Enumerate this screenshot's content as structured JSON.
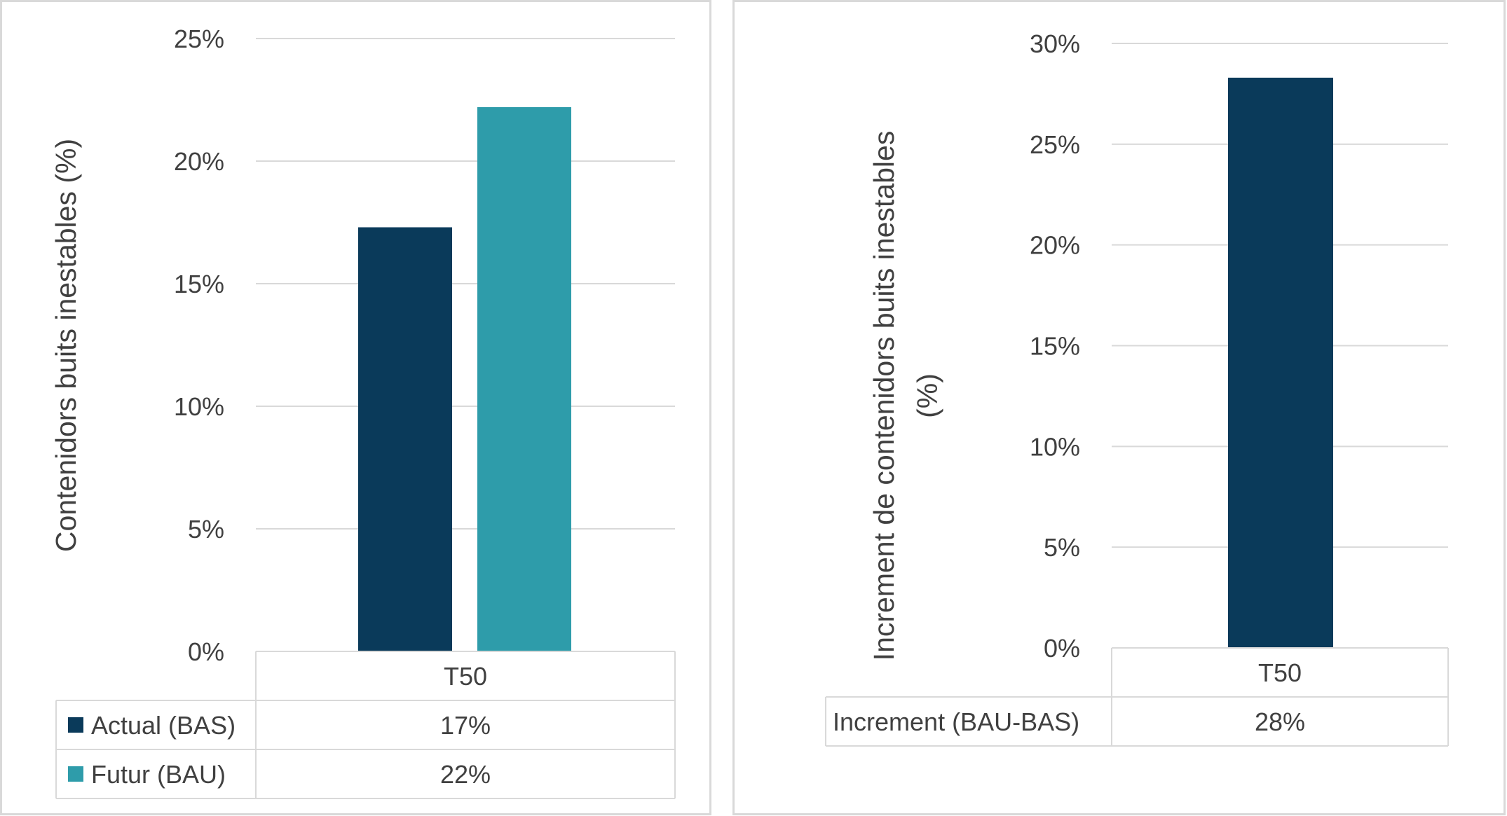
{
  "chart_data": [
    {
      "type": "bar",
      "categories": [
        "T50"
      ],
      "series": [
        {
          "name": "Actual (BAS)",
          "values": [
            17.3
          ],
          "label": "17%",
          "color": "#0a3a5a"
        },
        {
          "name": "Futur (BAU)",
          "values": [
            22.2
          ],
          "label": "22%",
          "color": "#2e9caa"
        }
      ],
      "ylabel": "Contenidors buits inestables (%)",
      "ylim": [
        0,
        25
      ],
      "yticks": [
        "0%",
        "5%",
        "10%",
        "15%",
        "20%",
        "25%"
      ],
      "grid": true,
      "legend": "data-table"
    },
    {
      "type": "bar",
      "categories": [
        "T50"
      ],
      "series": [
        {
          "name": "Increment (BAU-BAS)",
          "values": [
            28.3
          ],
          "label": "28%",
          "color": "#0a3a5a"
        }
      ],
      "ylabel": "Increment de contenidors buits inestables (%)",
      "ylim": [
        0,
        30
      ],
      "yticks": [
        "0%",
        "5%",
        "10%",
        "15%",
        "20%",
        "25%",
        "30%"
      ],
      "grid": true,
      "legend": "data-table"
    }
  ],
  "colors": {
    "grid": "#d9d9d9",
    "text": "#404040",
    "panel_border": "#d9d9d9"
  }
}
